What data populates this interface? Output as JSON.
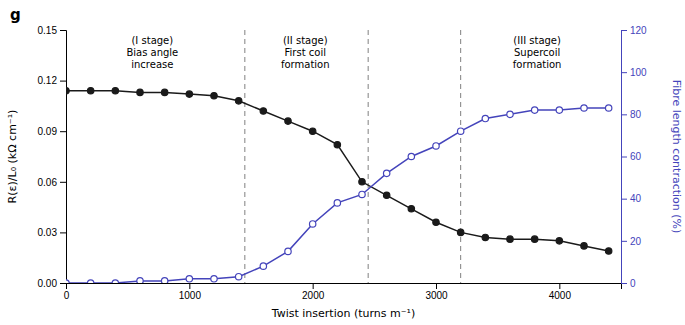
{
  "chart_data": {
    "type": "line",
    "title": "g",
    "xlabel": "Twist insertion (turns m⁻¹)",
    "ylabel": "R(ε)/L₀ (kΩ cm⁻¹)",
    "y2label": "Fibre length contraction (%)",
    "x": [
      0,
      200,
      400,
      600,
      800,
      1000,
      1200,
      1400,
      1600,
      1800,
      2000,
      2200,
      2400,
      2600,
      2800,
      3000,
      3200,
      3400,
      3600,
      3800,
      4000,
      4200,
      4400
    ],
    "series": [
      {
        "color": "#1a1a1a",
        "marker": "circle",
        "line_style": "solid",
        "values": [
          0.114,
          0.114,
          0.114,
          0.113,
          0.113,
          0.112,
          0.111,
          0.108,
          0.102,
          0.096,
          0.09,
          0.082,
          0.06,
          0.052,
          0.044,
          0.036,
          0.03,
          0.027,
          0.026,
          0.026,
          0.025,
          0.022,
          0.019
        ]
      },
      {
        "color": "#4444bb",
        "marker": "open-circle",
        "line_style": "solid",
        "axis": "y2",
        "values": [
          0,
          0,
          0,
          1,
          1,
          2,
          2,
          3,
          8,
          15,
          28,
          38,
          42,
          52,
          60,
          65,
          72,
          78,
          80,
          82,
          82,
          83,
          83
        ]
      }
    ],
    "xlim": [
      0,
      4500
    ],
    "xticks": [
      0,
      1000,
      2000,
      3000,
      4000
    ],
    "ylim": [
      0,
      0.15
    ],
    "yticks": [
      {
        "value": 0,
        "label": "0.00"
      },
      0.03,
      0.06,
      0.09,
      0.12,
      0.15
    ],
    "y2lim": [
      0,
      120
    ],
    "y2ticks": [
      0,
      20,
      40,
      60,
      80,
      100,
      120
    ],
    "vlines": {
      "values": [
        1450,
        2450,
        3200
      ],
      "color": "gray",
      "line_style": "dashed"
    },
    "annotations": [
      {
        "x": 700,
        "text": [
          "(I stage)",
          "Bias angle",
          "increase"
        ]
      },
      {
        "x": 1940,
        "text": [
          "(II stage)",
          "First coil",
          "formation"
        ]
      },
      {
        "x": 3820,
        "text": [
          "(III stage)",
          "Supercoil",
          "formation"
        ]
      }
    ],
    "grid": false
  }
}
